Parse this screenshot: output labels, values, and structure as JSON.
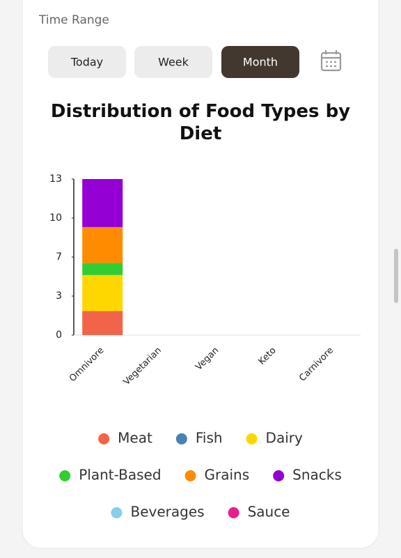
{
  "time_range": {
    "label": "Time Range",
    "buttons": [
      "Today",
      "Week",
      "Month"
    ],
    "active": 2
  },
  "chart_data": {
    "type": "stacked-bar",
    "title": "Distribution of Food Types by Diet",
    "categories": [
      "Omnivore",
      "Vegetarian",
      "Vegan",
      "Keto",
      "Carnivore"
    ],
    "series": [
      {
        "name": "Meat",
        "color": "#f0654a",
        "values": [
          2,
          0,
          0,
          0,
          0
        ]
      },
      {
        "name": "Fish",
        "color": "#4682b4",
        "values": [
          0,
          0,
          0,
          0,
          0
        ]
      },
      {
        "name": "Dairy",
        "color": "#ffd700",
        "values": [
          3,
          0,
          0,
          0,
          0
        ]
      },
      {
        "name": "Plant-Based",
        "color": "#32cd32",
        "values": [
          1,
          0,
          0,
          0,
          0
        ]
      },
      {
        "name": "Grains",
        "color": "#ff8c00",
        "values": [
          3,
          0,
          0,
          0,
          0
        ]
      },
      {
        "name": "Snacks",
        "color": "#9400d3",
        "values": [
          4,
          0,
          0,
          0,
          0
        ]
      },
      {
        "name": "Beverages",
        "color": "#87ceeb",
        "values": [
          0,
          0,
          0,
          0,
          0
        ]
      },
      {
        "name": "Sauce",
        "color": "#e91e8c",
        "values": [
          0,
          0,
          0,
          0,
          0
        ]
      }
    ],
    "ylim": [
      0,
      13
    ],
    "yticks": [
      0,
      {
        "value": 3.25,
        "label": "3"
      },
      {
        "value": 6.5,
        "label": "7"
      },
      {
        "value": 9.75,
        "label": "10"
      },
      13
    ],
    "grid": false
  }
}
